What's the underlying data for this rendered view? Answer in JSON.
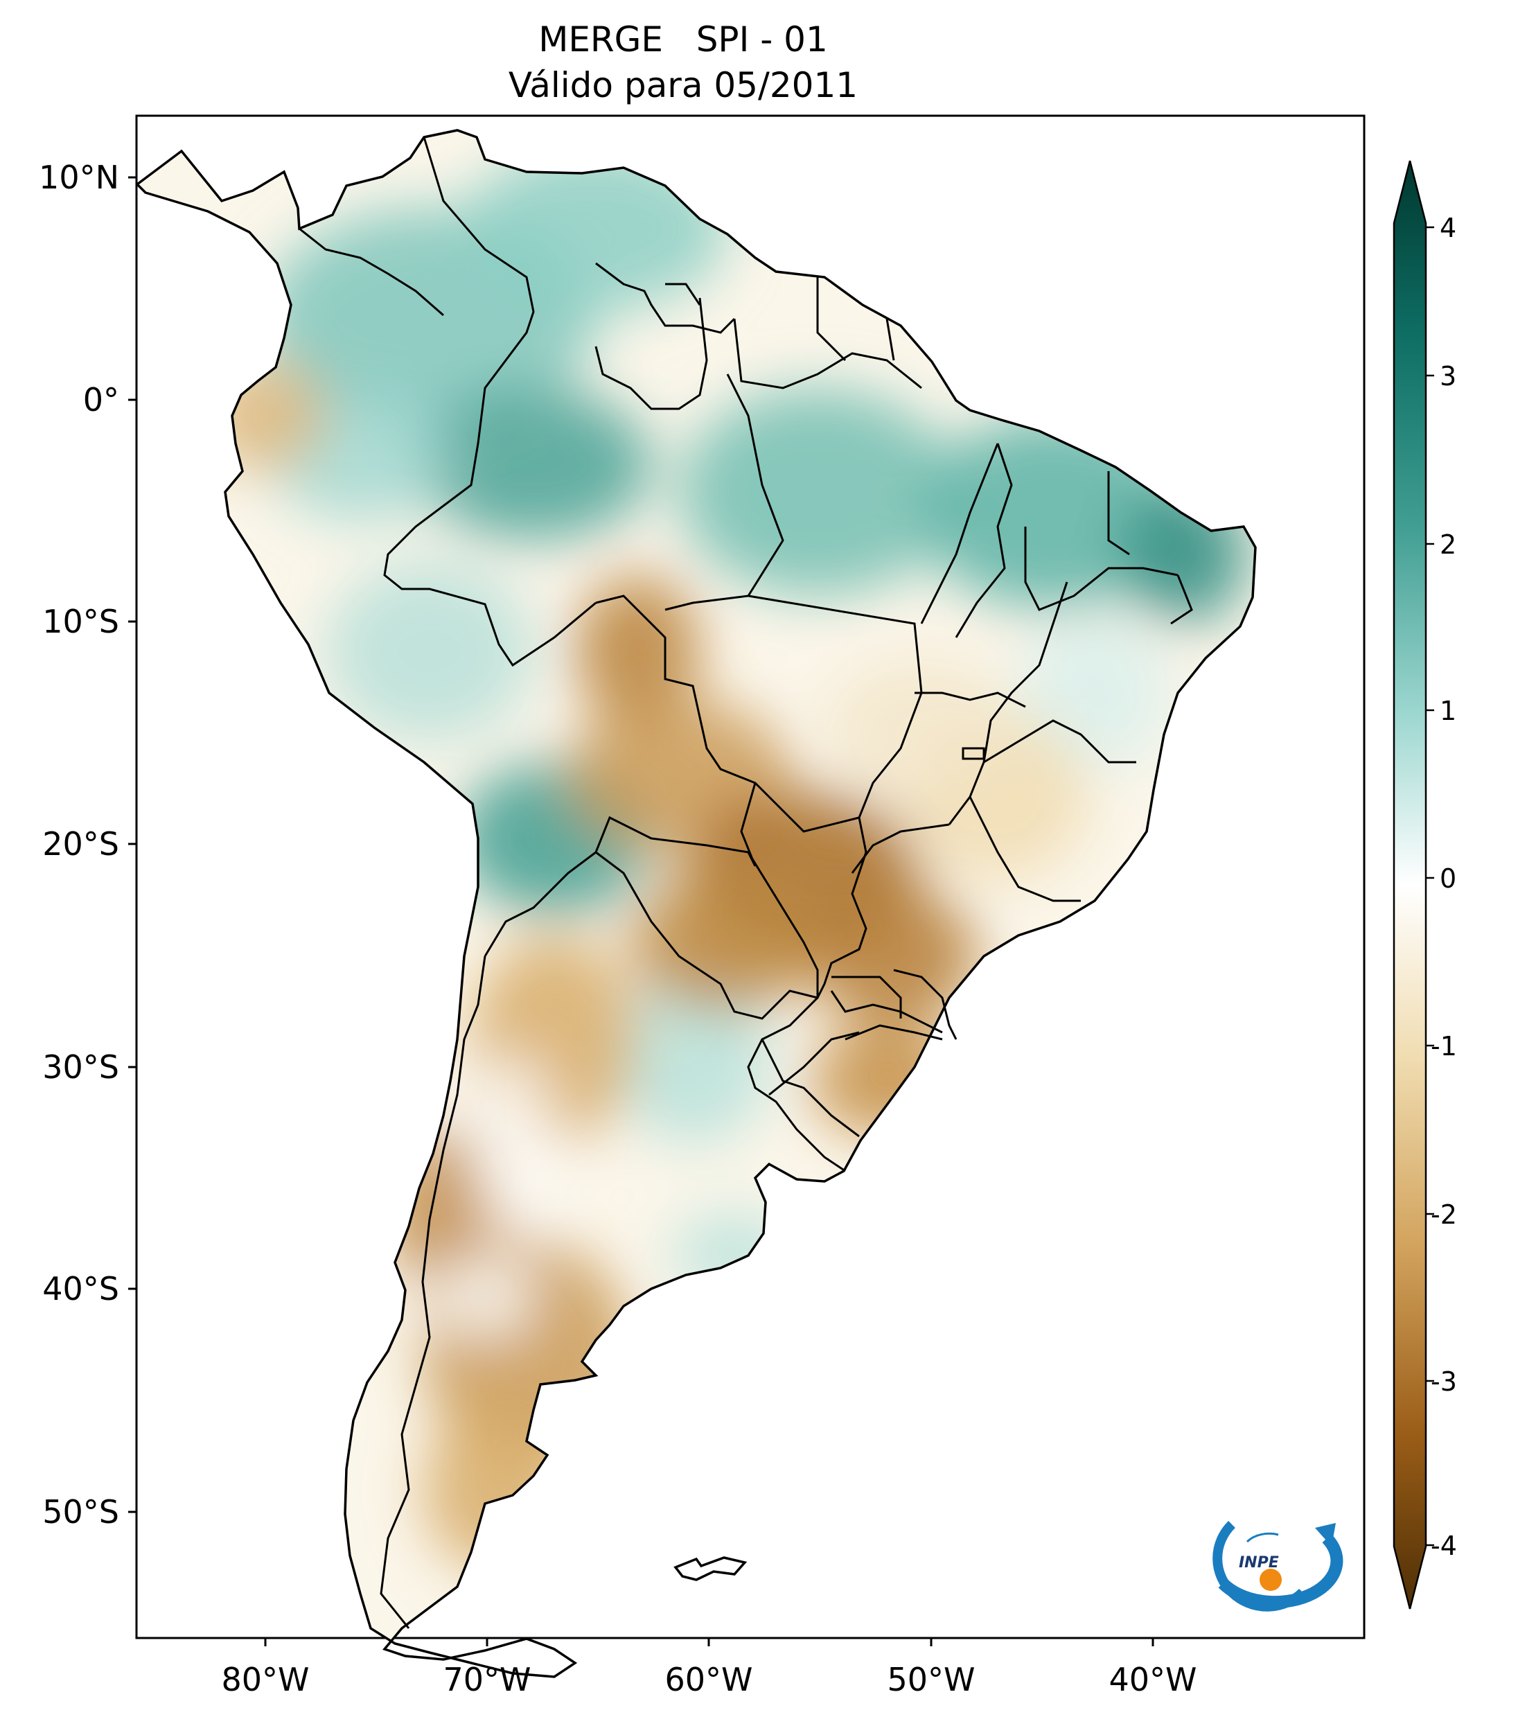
{
  "title": {
    "line1": "MERGE   SPI - 01",
    "line2": "Válido para 05/2011"
  },
  "map": {
    "region": "South America",
    "lon_ticks": [
      "80°W",
      "70°W",
      "60°W",
      "50°W",
      "40°W"
    ],
    "lat_ticks": [
      "10°N",
      "0°",
      "10°S",
      "20°S",
      "30°S",
      "40°S",
      "50°S"
    ]
  },
  "colorbar": {
    "variable": "SPI",
    "ticks": [
      "4",
      "3",
      "2",
      "1",
      "0",
      "-1",
      "-2",
      "-3",
      "-4"
    ],
    "range": [
      -4,
      4
    ],
    "colors": {
      "wet_extreme": "#01382f",
      "wet_strong": "#0e6e64",
      "wet_moderate": "#5ab2a6",
      "wet_mild": "#c2e8e3",
      "neutral": "#ffffff",
      "dry_mild": "#f2e2bd",
      "dry_moderate": "#d2a35d",
      "dry_strong": "#9a5d17",
      "dry_extreme": "#4e2f06"
    }
  },
  "logo": {
    "text": "INPE"
  }
}
